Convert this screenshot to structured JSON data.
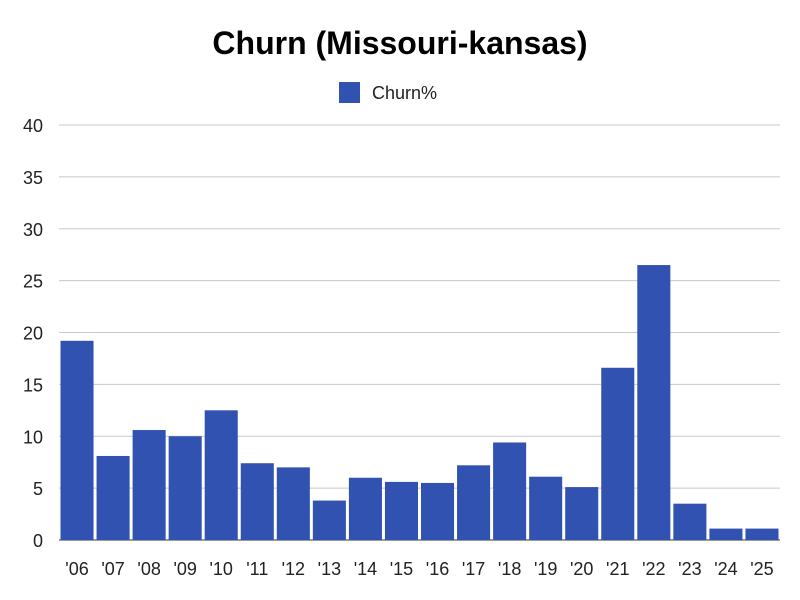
{
  "chart_data": {
    "type": "bar",
    "title": "Churn (Missouri-kansas)",
    "xlabel": "",
    "ylabel": "",
    "categories": [
      "'06",
      "'07",
      "'08",
      "'09",
      "'10",
      "'11",
      "'12",
      "'13",
      "'14",
      "'15",
      "'16",
      "'17",
      "'18",
      "'19",
      "'20",
      "'21",
      "'22",
      "'23",
      "'24",
      "'25"
    ],
    "series": [
      {
        "name": "Churn%",
        "color": "#3152b0",
        "values": [
          19.2,
          8.1,
          10.6,
          10.0,
          12.5,
          7.4,
          7.0,
          3.8,
          6.0,
          5.6,
          5.5,
          7.2,
          9.4,
          6.1,
          5.1,
          16.6,
          26.5,
          3.5,
          1.1,
          1.1
        ]
      }
    ],
    "ylim": [
      0,
      40
    ],
    "yticks": [
      0,
      5,
      10,
      15,
      20,
      25,
      30,
      35,
      40
    ],
    "grid": true,
    "legend_position": "top-center"
  }
}
